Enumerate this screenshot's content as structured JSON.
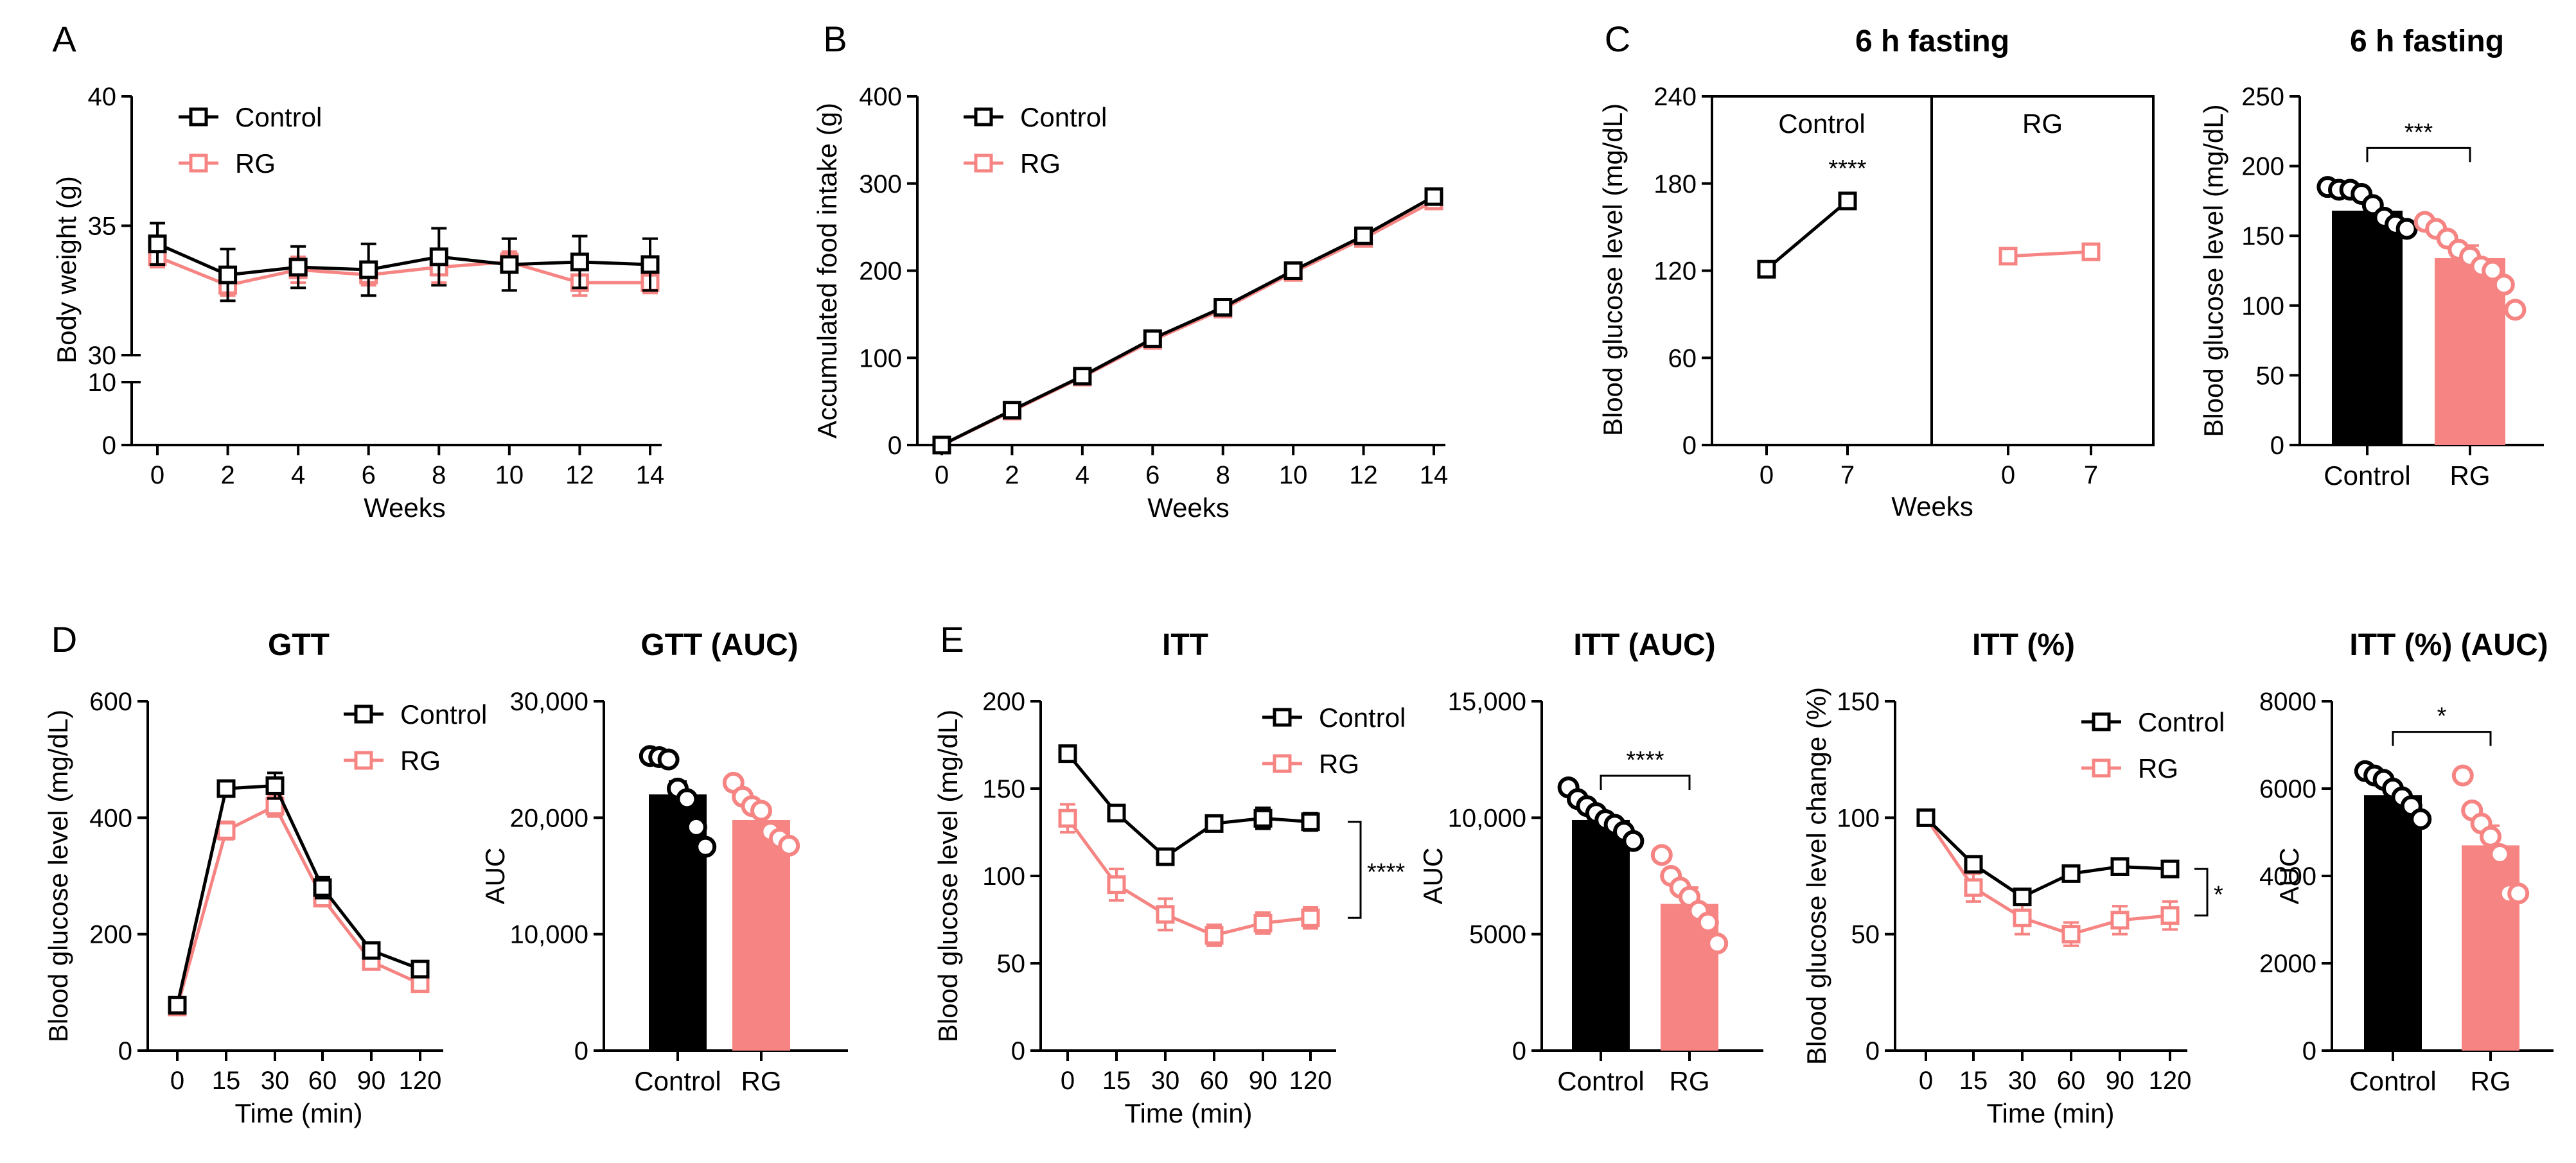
{
  "colors": {
    "control": "#000000",
    "rg": "#f58482"
  },
  "panel_labels": {
    "A": "A",
    "B": "B",
    "C": "C",
    "D": "D",
    "E": "E"
  },
  "chart_data": [
    {
      "id": "A",
      "type": "line",
      "title": "",
      "xlabel": "Weeks",
      "ylabel": "Body weight (g)",
      "x": [
        0,
        2,
        4,
        6,
        8,
        10,
        12,
        14
      ],
      "xticks": [
        "0",
        "2",
        "4",
        "6",
        "8",
        "10",
        "12",
        "14"
      ],
      "yticks_lower": [
        "0",
        "10"
      ],
      "yticks_upper": [
        "30",
        "35",
        "40"
      ],
      "axis_break": true,
      "ylim_lower": [
        0,
        10
      ],
      "ylim_upper": [
        30,
        40
      ],
      "legend": "top-left",
      "series": [
        {
          "name": "Control",
          "values": [
            34.3,
            33.1,
            33.4,
            33.3,
            33.8,
            33.5,
            33.6,
            33.5
          ],
          "err": [
            0.8,
            1.0,
            0.8,
            1.0,
            1.1,
            1.0,
            1.0,
            1.0
          ]
        },
        {
          "name": "RG",
          "values": [
            33.8,
            32.7,
            33.3,
            33.1,
            33.4,
            33.6,
            32.8,
            32.8
          ],
          "err": [
            0.4,
            0.4,
            0.5,
            0.4,
            0.6,
            0.4,
            0.5,
            0.4
          ]
        }
      ]
    },
    {
      "id": "B",
      "type": "line",
      "title": "",
      "xlabel": "Weeks",
      "ylabel": "Accumulated food intake (g)",
      "x": [
        0,
        2,
        4,
        6,
        8,
        10,
        12,
        14
      ],
      "xticks": [
        "0",
        "2",
        "4",
        "6",
        "8",
        "10",
        "12",
        "14"
      ],
      "yticks": [
        "0",
        "100",
        "200",
        "300",
        "400"
      ],
      "ylim": [
        0,
        400
      ],
      "legend": "top-left",
      "series": [
        {
          "name": "Control",
          "values": [
            0,
            40,
            79,
            122,
            158,
            200,
            240,
            285
          ]
        },
        {
          "name": "RG",
          "values": [
            0,
            39,
            78,
            120,
            156,
            198,
            237,
            280
          ]
        }
      ]
    },
    {
      "id": "C1",
      "type": "line",
      "title": "6 h fasting",
      "xlabel": "Weeks",
      "ylabel": "Blood glucose level (mg/dL)",
      "yticks": [
        "0",
        "60",
        "120",
        "180",
        "240"
      ],
      "ylim": [
        0,
        240
      ],
      "facets": [
        {
          "label": "Control",
          "series": "Control",
          "xticks": [
            "0",
            "7"
          ],
          "values": [
            121,
            168
          ],
          "annotation": "****"
        },
        {
          "label": "RG",
          "series": "RG",
          "xticks": [
            "0",
            "7"
          ],
          "values": [
            130,
            133
          ],
          "annotation": ""
        }
      ]
    },
    {
      "id": "C2",
      "type": "bar",
      "title": "6 h fasting",
      "xlabel": "",
      "ylabel": "Blood glucose level (mg/dL)",
      "categories": [
        "Control",
        "RG"
      ],
      "yticks": [
        "0",
        "50",
        "100",
        "150",
        "200",
        "250"
      ],
      "ylim": [
        0,
        250
      ],
      "values": [
        168,
        134
      ],
      "err": [
        6,
        9
      ],
      "points": [
        [
          185,
          183,
          183,
          180,
          172,
          163,
          158,
          155
        ],
        [
          160,
          155,
          148,
          140,
          135,
          128,
          125,
          115,
          97
        ]
      ],
      "significance": "***"
    },
    {
      "id": "D1",
      "type": "line",
      "title": "GTT",
      "xlabel": "Time (min)",
      "ylabel": "Blood glucose level (mg/dL)",
      "xticks": [
        "0",
        "15",
        "30",
        "60",
        "90",
        "120"
      ],
      "yticks": [
        "0",
        "200",
        "400",
        "600"
      ],
      "ylim": [
        0,
        600
      ],
      "legend": "top-right",
      "series": [
        {
          "name": "Control",
          "values": [
            78,
            450,
            455,
            280,
            172,
            140
          ],
          "err": [
            5,
            12,
            22,
            18,
            10,
            8
          ]
        },
        {
          "name": "RG",
          "values": [
            75,
            378,
            420,
            262,
            153,
            115
          ],
          "err": [
            5,
            15,
            18,
            14,
            8,
            7
          ]
        }
      ]
    },
    {
      "id": "D2",
      "type": "bar",
      "title": "GTT (AUC)",
      "xlabel": "",
      "ylabel": "AUC",
      "categories": [
        "Control",
        "RG"
      ],
      "yticks": [
        "0",
        "10,000",
        "20,000",
        "30,000"
      ],
      "ylim": [
        0,
        30000
      ],
      "values": [
        22000,
        19800
      ],
      "err": [
        1100,
        900
      ],
      "points": [
        [
          25300,
          25200,
          25000,
          22500,
          21600,
          19200,
          17500
        ],
        [
          23000,
          21800,
          21000,
          20600,
          18800,
          18200,
          17600
        ]
      ],
      "significance": ""
    },
    {
      "id": "E1",
      "type": "line",
      "title": "ITT",
      "xlabel": "Time (min)",
      "ylabel": "Blood glucose level (mg/dL)",
      "xticks": [
        "0",
        "15",
        "30",
        "60",
        "90",
        "120"
      ],
      "yticks": [
        "0",
        "50",
        "100",
        "150",
        "200"
      ],
      "ylim": [
        0,
        200
      ],
      "legend": "top-right",
      "series": [
        {
          "name": "Control",
          "values": [
            170,
            136,
            111,
            130,
            133,
            131
          ],
          "err": [
            4,
            3,
            4,
            4,
            6,
            5
          ]
        },
        {
          "name": "RG",
          "values": [
            133,
            95,
            78,
            66,
            73,
            76
          ],
          "err": [
            8,
            9,
            9,
            6,
            6,
            6
          ]
        }
      ],
      "significance": "****"
    },
    {
      "id": "E2",
      "type": "bar",
      "title": "ITT (AUC)",
      "xlabel": "",
      "ylabel": "AUC",
      "categories": [
        "Control",
        "RG"
      ],
      "yticks": [
        "0",
        "5000",
        "10,000",
        "15,000"
      ],
      "ylim": [
        0,
        15000
      ],
      "values": [
        9900,
        6300
      ],
      "err": [
        350,
        700
      ],
      "points": [
        [
          11300,
          10800,
          10500,
          10200,
          9900,
          9700,
          9400,
          9000
        ],
        [
          8400,
          7500,
          7000,
          6600,
          6000,
          5500,
          4600
        ]
      ],
      "significance": "****"
    },
    {
      "id": "E3",
      "type": "line",
      "title": "ITT (%)",
      "xlabel": "Time (min)",
      "ylabel": "Blood glucose level change (%)",
      "xticks": [
        "0",
        "15",
        "30",
        "60",
        "90",
        "120"
      ],
      "yticks": [
        "0",
        "50",
        "100",
        "150"
      ],
      "ylim": [
        0,
        150
      ],
      "legend": "top-right",
      "series": [
        {
          "name": "Control",
          "values": [
            100,
            80,
            66,
            76,
            79,
            78
          ],
          "err": [
            1,
            3,
            3,
            3,
            3,
            3
          ]
        },
        {
          "name": "RG",
          "values": [
            100,
            70,
            57,
            50,
            56,
            58
          ],
          "err": [
            1,
            6,
            7,
            5,
            6,
            6
          ]
        }
      ],
      "significance": "*"
    },
    {
      "id": "E4",
      "type": "bar",
      "title": "ITT (%) (AUC)",
      "xlabel": "",
      "ylabel": "AUC",
      "categories": [
        "Control",
        "RG"
      ],
      "yticks": [
        "0",
        "2000",
        "4000",
        "6000",
        "8000"
      ],
      "ylim": [
        0,
        8000
      ],
      "values": [
        5850,
        4700
      ],
      "err": [
        150,
        450
      ],
      "points": [
        [
          6400,
          6300,
          6200,
          6000,
          5800,
          5600,
          5300
        ],
        [
          6300,
          5500,
          5200,
          4900,
          4500,
          3600,
          3600
        ]
      ],
      "significance": "*"
    }
  ]
}
